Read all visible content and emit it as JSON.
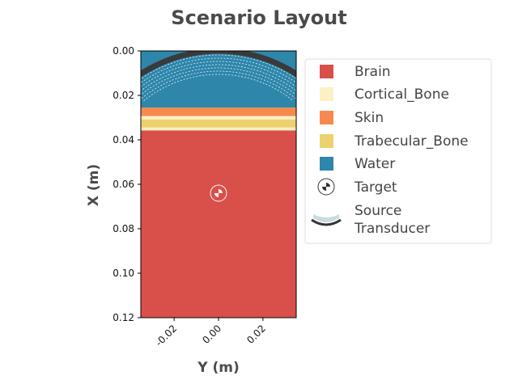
{
  "chart_data": {
    "type": "heatmap",
    "title": "Scenario Layout",
    "xlabel": "Y (m)",
    "ylabel": "X (m)",
    "xlim": [
      -0.035,
      0.035
    ],
    "ylim": [
      0.12,
      0.0
    ],
    "x_ticks": [
      -0.02,
      0.0,
      0.02
    ],
    "x_tick_labels": [
      "-0.02",
      "0.00",
      "0.02"
    ],
    "y_ticks": [
      0.0,
      0.02,
      0.04,
      0.06,
      0.08,
      0.1,
      0.12
    ],
    "y_tick_labels": [
      "0.00",
      "0.02",
      "0.04",
      "0.06",
      "0.08",
      "0.10",
      "0.12"
    ],
    "grid": false,
    "legend_position": "right",
    "layers": [
      {
        "name": "Water",
        "color": "#2e86ab",
        "x_start": 0.0,
        "x_end": 0.0255
      },
      {
        "name": "Skin",
        "color": "#f68a4e",
        "x_start": 0.0255,
        "x_end": 0.0293
      },
      {
        "name": "Cortical_Bone",
        "color": "#fdf0c4",
        "x_start": 0.0293,
        "x_end": 0.0308
      },
      {
        "name": "Trabecular_Bone",
        "color": "#ecd170",
        "x_start": 0.0308,
        "x_end": 0.0345
      },
      {
        "name": "Cortical_Bone",
        "color": "#fdf0c4",
        "x_start": 0.0345,
        "x_end": 0.0358
      },
      {
        "name": "Brain",
        "color": "#d94f4a",
        "x_start": 0.0358,
        "x_end": 0.12
      }
    ],
    "target": {
      "y": 0.0,
      "x": 0.064
    },
    "transducer": {
      "center_y": 0.0,
      "center_x": 0.064,
      "radius": 0.064,
      "half_angle_deg": 50
    },
    "legend": [
      {
        "label": "Brain",
        "kind": "square",
        "color": "#d94f4a"
      },
      {
        "label": "Cortical_Bone",
        "kind": "square",
        "color": "#fdf0c4"
      },
      {
        "label": "Skin",
        "kind": "square",
        "color": "#f68a4e"
      },
      {
        "label": "Trabecular_Bone",
        "kind": "square",
        "color": "#ecd170"
      },
      {
        "label": "Water",
        "kind": "square",
        "color": "#2e86ab"
      },
      {
        "label": "Target",
        "kind": "target",
        "color": "#333333"
      },
      {
        "label": "Source\nTransducer",
        "kind": "transducer",
        "color": "#333333"
      }
    ]
  }
}
